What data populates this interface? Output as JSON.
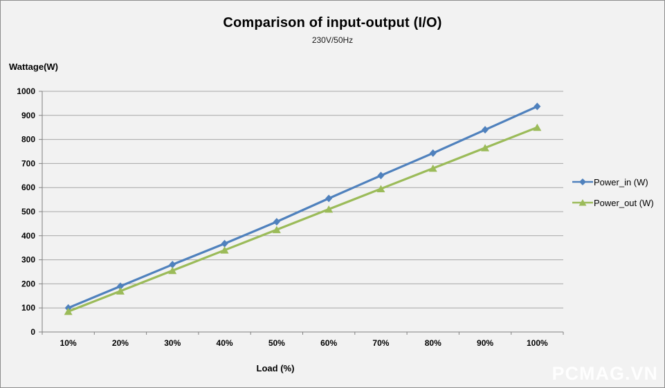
{
  "title": "Comparison of input-output (I/O)",
  "subtitle": "230V/50Hz",
  "watermark": "PCMAG.VN",
  "colors": {
    "background": "#f2f2f2",
    "border": "#8c8c8c",
    "gridline": "#a6a6a6",
    "axis": "#808080",
    "power_in": "#4F81BD",
    "power_out": "#9BBB59",
    "watermark_text": "#ffffff"
  },
  "chart_data": {
    "type": "line",
    "title": "Comparison of input-output (I/O)",
    "subtitle": "230V/50Hz",
    "xlabel": "Load (%)",
    "ylabel": "Wattage(W)",
    "categories": [
      "10%",
      "20%",
      "30%",
      "40%",
      "50%",
      "60%",
      "70%",
      "80%",
      "90%",
      "100%"
    ],
    "ylim": [
      0,
      1000
    ],
    "ytick_step": 100,
    "grid": "horizontal",
    "legend_position": "right",
    "series": [
      {
        "name": "Power_in (W)",
        "color": "#4F81BD",
        "marker": "diamond",
        "values": [
          100,
          190,
          280,
          367,
          458,
          555,
          650,
          743,
          840,
          937
        ]
      },
      {
        "name": "Power_out (W)",
        "color": "#9BBB59",
        "marker": "triangle",
        "values": [
          85,
          170,
          255,
          340,
          425,
          510,
          595,
          680,
          765,
          850
        ]
      }
    ]
  }
}
